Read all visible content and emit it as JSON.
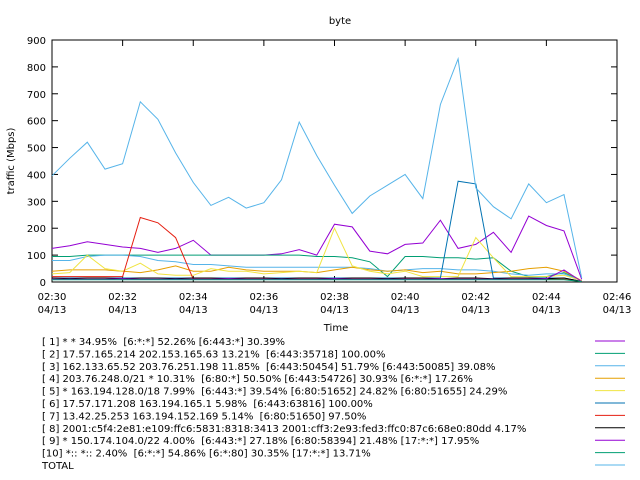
{
  "chart_data": {
    "type": "line",
    "title": "byte",
    "xlabel": "Time",
    "ylabel": "traffic (Mbps)",
    "x": [
      150,
      150.5,
      151,
      151.5,
      152,
      152.5,
      153,
      153.5,
      154,
      154.5,
      155,
      155.5,
      156,
      156.5,
      157,
      157.5,
      158,
      158.5,
      159,
      159.5,
      160,
      160.5,
      161,
      161.5,
      162,
      162.5,
      163,
      163.5,
      164,
      164.5,
      165
    ],
    "xlim": [
      150,
      166
    ],
    "xticks": [
      {
        "value": 150,
        "label": "02:30",
        "date": "04/13"
      },
      {
        "value": 152,
        "label": "02:32",
        "date": "04/13"
      },
      {
        "value": 154,
        "label": "02:34",
        "date": "04/13"
      },
      {
        "value": 156,
        "label": "02:36",
        "date": "04/13"
      },
      {
        "value": 158,
        "label": "02:38",
        "date": "04/13"
      },
      {
        "value": 160,
        "label": "02:40",
        "date": "04/13"
      },
      {
        "value": 162,
        "label": "02:42",
        "date": "04/13"
      },
      {
        "value": 164,
        "label": "02:44",
        "date": "04/13"
      },
      {
        "value": 166,
        "label": "02:46",
        "date": "04/13"
      }
    ],
    "ylim": [
      0,
      900
    ],
    "yticks": [
      0,
      100,
      200,
      300,
      400,
      500,
      600,
      700,
      800,
      900
    ],
    "grid": false,
    "series": [
      {
        "name": "[ 1] * * 34.95%  [6:*:*] 52.26% [6:443:*] 30.39%",
        "color": "#9400d3",
        "values": [
          125,
          135,
          150,
          140,
          130,
          125,
          110,
          125,
          155,
          100,
          100,
          100,
          100,
          105,
          120,
          100,
          215,
          205,
          115,
          105,
          140,
          145,
          230,
          125,
          140,
          185,
          110,
          245,
          210,
          190,
          10
        ]
      },
      {
        "name": "[ 2] 17.57.165.214 202.153.165.63 13.21%  [6:443:35718] 100.00%",
        "color": "#009e73",
        "values": [
          95,
          95,
          100,
          100,
          100,
          100,
          100,
          100,
          100,
          100,
          100,
          100,
          100,
          100,
          100,
          95,
          95,
          90,
          75,
          20,
          95,
          95,
          90,
          90,
          85,
          90,
          40,
          20,
          20,
          35,
          5
        ]
      },
      {
        "name": "[ 3] 162.133.65.52 203.76.251.198 11.85%  [6:443:50454] 51.79% [6:443:50085] 39.08%",
        "color": "#56b4e9",
        "values": [
          80,
          80,
          95,
          100,
          100,
          95,
          80,
          75,
          65,
          65,
          60,
          55,
          55,
          55,
          55,
          55,
          55,
          55,
          50,
          40,
          45,
          50,
          50,
          45,
          45,
          40,
          30,
          25,
          30,
          30,
          5
        ]
      },
      {
        "name": "[ 4] 203.76.248.0/21 * 10.31%  [6:80:*] 50.50% [6:443:54726] 30.93% [6:*:*] 17.26%",
        "color": "#e69f00",
        "values": [
          40,
          45,
          45,
          45,
          40,
          35,
          45,
          60,
          40,
          40,
          55,
          45,
          40,
          40,
          40,
          35,
          45,
          55,
          45,
          40,
          45,
          35,
          40,
          30,
          30,
          35,
          40,
          50,
          55,
          40,
          5
        ]
      },
      {
        "name": "[ 5] * 163.194.128.0/18 7.99%  [6:443:*] 39.54% [6:80:51652] 24.82% [6:80:51655] 24.29%",
        "color": "#f0e442",
        "values": [
          30,
          35,
          100,
          50,
          40,
          70,
          30,
          25,
          25,
          50,
          40,
          40,
          30,
          35,
          40,
          35,
          200,
          60,
          40,
          30,
          40,
          20,
          20,
          20,
          165,
          90,
          20,
          20,
          20,
          25,
          5
        ]
      },
      {
        "name": "[ 6] 17.57.171.208 163.194.165.1 5.98%  [6:443:63816] 100.00%",
        "color": "#0072b2",
        "values": [
          15,
          15,
          15,
          15,
          15,
          15,
          15,
          15,
          15,
          15,
          15,
          15,
          15,
          15,
          15,
          15,
          15,
          15,
          15,
          15,
          15,
          15,
          15,
          375,
          365,
          15,
          15,
          15,
          15,
          15,
          2
        ]
      },
      {
        "name": "[ 7] 13.42.25.253 163.194.152.169 5.14%  [6:80:51650] 97.50%",
        "color": "#e51e10",
        "values": [
          20,
          20,
          20,
          20,
          20,
          240,
          220,
          165,
          10,
          10,
          10,
          10,
          10,
          10,
          10,
          10,
          10,
          10,
          10,
          10,
          10,
          10,
          10,
          10,
          10,
          10,
          10,
          10,
          10,
          10,
          2
        ]
      },
      {
        "name": "[ 8] 2001:c5f4:2e81:e109:ffc6:5831:8318:3413 2001:cff3:2e93:fed3:ffc0:87c6:68e0:80dd 4.17%",
        "color": "#000000",
        "values": [
          15,
          12,
          15,
          15,
          12,
          15,
          15,
          12,
          15,
          15,
          12,
          15,
          15,
          12,
          15,
          15,
          12,
          15,
          15,
          12,
          15,
          15,
          12,
          15,
          15,
          12,
          15,
          15,
          12,
          15,
          2
        ]
      },
      {
        "name": "[ 9] * 150.174.104.0/22 4.00%  [6:443:*] 27.18% [6:80:58394] 21.48% [17:*:*] 17.95%",
        "color": "#9400d3",
        "values": [
          10,
          10,
          10,
          10,
          12,
          10,
          10,
          10,
          10,
          10,
          12,
          10,
          10,
          10,
          10,
          10,
          12,
          10,
          10,
          10,
          10,
          10,
          12,
          10,
          10,
          10,
          10,
          10,
          12,
          45,
          2
        ]
      },
      {
        "name": "[10] *:: *:: 2.40%  [6:*:*] 54.86% [6:*:80] 30.35% [17:*:*] 13.71%",
        "color": "#009e73",
        "values": [
          8,
          8,
          8,
          8,
          8,
          8,
          8,
          8,
          8,
          8,
          8,
          8,
          8,
          8,
          8,
          8,
          8,
          8,
          8,
          8,
          8,
          8,
          8,
          8,
          8,
          8,
          8,
          8,
          8,
          8,
          2
        ]
      },
      {
        "name": "TOTAL",
        "color": "#56b4e9",
        "values": [
          395,
          460,
          520,
          420,
          440,
          670,
          605,
          480,
          370,
          285,
          315,
          275,
          295,
          380,
          595,
          470,
          360,
          255,
          320,
          360,
          400,
          310,
          660,
          830,
          350,
          280,
          235,
          365,
          295,
          325,
          15
        ]
      }
    ]
  }
}
